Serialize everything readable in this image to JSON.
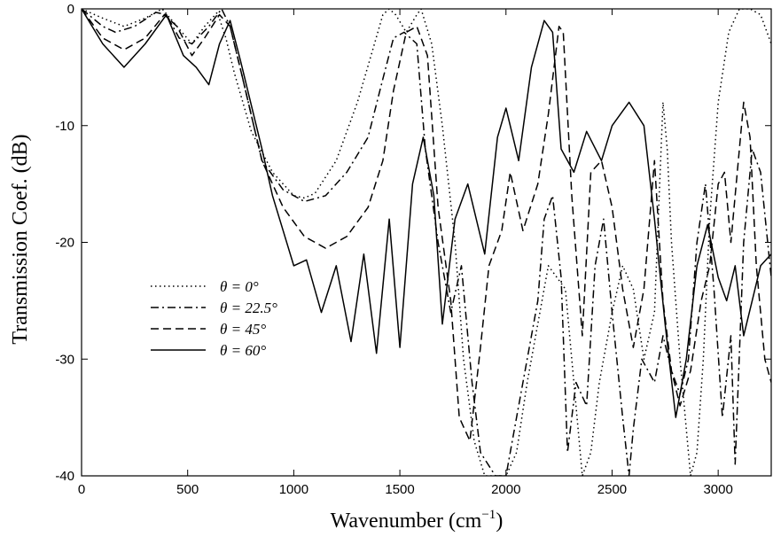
{
  "chart_data": {
    "type": "line",
    "title": "",
    "xlabel": "Wavenumber (cm",
    "xlabel_sup": "−1",
    "xlabel_close": ")",
    "ylabel": "Transmission Coef. (dB)",
    "xlim": [
      0,
      3250
    ],
    "ylim": [
      -40,
      0
    ],
    "xticks": [
      0,
      500,
      1000,
      1500,
      2000,
      2500,
      3000
    ],
    "yticks": [
      0,
      -10,
      -20,
      -30,
      -40
    ],
    "grid": false,
    "legend_position": "center-left",
    "series": [
      {
        "name": "θ = 0°",
        "style": "dotted",
        "x": [
          0,
          100,
          200,
          300,
          380,
          450,
          520,
          580,
          640,
          680,
          720,
          800,
          900,
          1000,
          1050,
          1100,
          1200,
          1300,
          1380,
          1420,
          1450,
          1480,
          1530,
          1580,
          1600,
          1650,
          1700,
          1760,
          1800,
          1850,
          1900,
          1950,
          2000,
          2050,
          2100,
          2200,
          2280,
          2320,
          2360,
          2400,
          2440,
          2500,
          2550,
          2600,
          2650,
          2700,
          2740,
          2760,
          2780,
          2820,
          2850,
          2870,
          2900,
          2930,
          2960,
          3000,
          3050,
          3100,
          3150,
          3200,
          3250
        ],
        "y": [
          0,
          -0.8,
          -1.5,
          -0.8,
          0,
          -1.5,
          -3,
          -1.5,
          -0.3,
          -2.5,
          -5.5,
          -10.5,
          -14,
          -16,
          -16.2,
          -15.8,
          -13,
          -8,
          -3,
          -0.5,
          0,
          -0.5,
          -2,
          -0.5,
          0,
          -3,
          -10,
          -20,
          -30,
          -37,
          -40,
          -40,
          -40,
          -38,
          -32,
          -22,
          -24,
          -32,
          -40,
          -38,
          -32,
          -26,
          -22,
          -24,
          -30,
          -26,
          -8,
          -12,
          -20,
          -30,
          -36,
          -40,
          -38,
          -30,
          -18,
          -8,
          -2,
          0,
          0,
          -0.5,
          -3
        ]
      },
      {
        "name": "θ = 22.5°",
        "style": "dashdot",
        "x": [
          0,
          100,
          160,
          250,
          350,
          400,
          460,
          520,
          600,
          660,
          700,
          760,
          850,
          950,
          1050,
          1150,
          1250,
          1350,
          1420,
          1470,
          1520,
          1580,
          1620,
          1680,
          1740,
          1790,
          1840,
          1880,
          1950,
          2000,
          2050,
          2100,
          2150,
          2180,
          2220,
          2260,
          2290,
          2330,
          2380,
          2420,
          2460,
          2500,
          2550,
          2580,
          2600,
          2640,
          2700,
          2740,
          2780,
          2820,
          2860,
          2900,
          2940,
          2980,
          3020,
          3060,
          3080,
          3120,
          3160,
          3200,
          3250
        ],
        "y": [
          0,
          -1.5,
          -2,
          -1.5,
          -0.3,
          -0.5,
          -2.5,
          -3,
          -1.5,
          0,
          -1.5,
          -6,
          -13,
          -15.5,
          -16.5,
          -16,
          -14,
          -11,
          -6,
          -2.5,
          -2,
          -3,
          -12,
          -20,
          -26,
          -22,
          -32,
          -38,
          -40,
          -40,
          -35,
          -30,
          -25,
          -18,
          -16,
          -23,
          -38,
          -32,
          -34,
          -22,
          -18,
          -26,
          -35,
          -40,
          -36,
          -30,
          -32,
          -28,
          -31,
          -33,
          -30,
          -20,
          -15,
          -24,
          -35,
          -28,
          -39,
          -20,
          -12,
          -14,
          -23
        ]
      },
      {
        "name": "θ = 45°",
        "style": "dashed",
        "x": [
          0,
          100,
          200,
          300,
          390,
          450,
          520,
          580,
          650,
          700,
          760,
          850,
          950,
          1050,
          1150,
          1250,
          1350,
          1420,
          1470,
          1530,
          1580,
          1630,
          1680,
          1740,
          1780,
          1830,
          1880,
          1920,
          1980,
          2020,
          2080,
          2150,
          2200,
          2250,
          2270,
          2310,
          2360,
          2400,
          2450,
          2500,
          2550,
          2600,
          2650,
          2700,
          2740,
          2780,
          2820,
          2870,
          2920,
          2960,
          3000,
          3030,
          3060,
          3090,
          3120,
          3150,
          3180,
          3220,
          3250
        ],
        "y": [
          0,
          -2.5,
          -3.5,
          -2.5,
          -0.5,
          -1.5,
          -4,
          -2.5,
          -0.5,
          -1.5,
          -6,
          -13,
          -17,
          -19.5,
          -20.5,
          -19.5,
          -17,
          -13,
          -7,
          -2,
          -1.5,
          -4,
          -17,
          -25,
          -35,
          -37,
          -29,
          -22,
          -19,
          -14,
          -19,
          -15,
          -9,
          -1.5,
          -2,
          -16,
          -28,
          -14,
          -13,
          -17,
          -24,
          -29,
          -24,
          -13,
          -25,
          -31,
          -34,
          -31,
          -25,
          -22,
          -15,
          -14,
          -20,
          -14,
          -8,
          -11,
          -22,
          -30,
          -32
        ]
      },
      {
        "name": "θ = 60°",
        "style": "solid",
        "x": [
          0,
          100,
          200,
          300,
          400,
          480,
          540,
          600,
          650,
          700,
          750,
          850,
          900,
          950,
          1000,
          1060,
          1130,
          1200,
          1270,
          1330,
          1390,
          1450,
          1500,
          1560,
          1610,
          1660,
          1700,
          1760,
          1820,
          1900,
          1960,
          2000,
          2060,
          2120,
          2180,
          2220,
          2260,
          2320,
          2380,
          2450,
          2500,
          2580,
          2650,
          2700,
          2750,
          2800,
          2850,
          2900,
          2950,
          3000,
          3040,
          3080,
          3120,
          3160,
          3200,
          3250
        ],
        "y": [
          0,
          -3,
          -5,
          -3,
          -0.5,
          -4,
          -5,
          -6.5,
          -3,
          -1,
          -4.5,
          -12,
          -16,
          -19,
          -22,
          -21.5,
          -26,
          -22,
          -28.5,
          -21,
          -29.5,
          -18,
          -29,
          -15,
          -11,
          -16,
          -27,
          -18,
          -15,
          -21,
          -11,
          -8.5,
          -13,
          -5,
          -1,
          -2,
          -12,
          -14,
          -10.5,
          -13,
          -10,
          -8,
          -10,
          -18,
          -27,
          -35,
          -30,
          -22,
          -18.5,
          -23,
          -25,
          -22,
          -28,
          -25,
          -22,
          -21
        ]
      }
    ]
  }
}
